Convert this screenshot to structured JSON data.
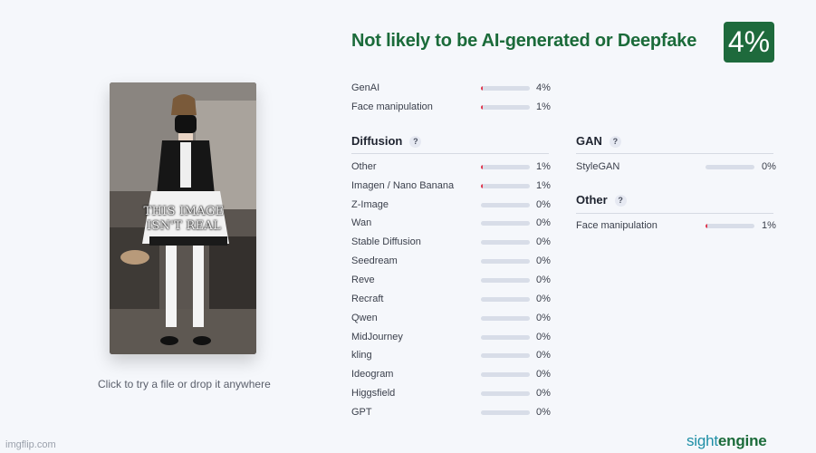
{
  "upload": {
    "image_caption_line1": "THIS IMAGE",
    "image_caption_line2": "ISN'T REAL",
    "drop_hint": "Click to try a file or drop it anywhere"
  },
  "verdict": {
    "title": "Not likely to be AI-generated or Deepfake",
    "score": "4%"
  },
  "summary": [
    {
      "label": "GenAI",
      "value": "4%",
      "fraction": 0.04
    },
    {
      "label": "Face manipulation",
      "value": "1%",
      "fraction": 0.01
    }
  ],
  "diffusion": {
    "title": "Diffusion",
    "help": "?",
    "items": [
      {
        "label": "Other",
        "value": "1%",
        "fraction": 0.01
      },
      {
        "label": "Imagen / Nano Banana",
        "value": "1%",
        "fraction": 0.01
      },
      {
        "label": "Z-Image",
        "value": "0%",
        "fraction": 0
      },
      {
        "label": "Wan",
        "value": "0%",
        "fraction": 0
      },
      {
        "label": "Stable Diffusion",
        "value": "0%",
        "fraction": 0
      },
      {
        "label": "Seedream",
        "value": "0%",
        "fraction": 0
      },
      {
        "label": "Reve",
        "value": "0%",
        "fraction": 0
      },
      {
        "label": "Recraft",
        "value": "0%",
        "fraction": 0
      },
      {
        "label": "Qwen",
        "value": "0%",
        "fraction": 0
      },
      {
        "label": "MidJourney",
        "value": "0%",
        "fraction": 0
      },
      {
        "label": "kling",
        "value": "0%",
        "fraction": 0
      },
      {
        "label": "Ideogram",
        "value": "0%",
        "fraction": 0
      },
      {
        "label": "Higgsfield",
        "value": "0%",
        "fraction": 0
      },
      {
        "label": "GPT",
        "value": "0%",
        "fraction": 0
      }
    ]
  },
  "gan": {
    "title": "GAN",
    "help": "?",
    "items": [
      {
        "label": "StyleGAN",
        "value": "0%",
        "fraction": 0
      }
    ]
  },
  "other": {
    "title": "Other",
    "help": "?",
    "items": [
      {
        "label": "Face manipulation",
        "value": "1%",
        "fraction": 0.01
      }
    ]
  },
  "brand": {
    "part1": "sight",
    "part2": "engine"
  },
  "watermark": "imgflip.com",
  "colors": {
    "verdict_green": "#1b6b3a",
    "bar_fill": "#e0344c",
    "bar_track": "#d8dde8",
    "brand_teal": "#1f8fa6"
  }
}
